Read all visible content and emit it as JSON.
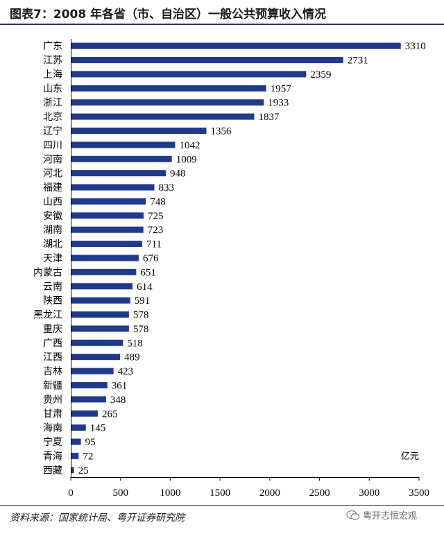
{
  "title": "图表7：2008 年各省（市、自治区）一般公共预算收入情况",
  "source": "资料来源：国家统计局、粤开证券研究院",
  "watermark": "粤开志恒宏观",
  "colors": {
    "bar": "#1f3a8a",
    "rule": "#1f3a70"
  },
  "chart_data": {
    "type": "bar",
    "orientation": "horizontal",
    "unit": "亿元",
    "categories": [
      "广东",
      "江苏",
      "上海",
      "山东",
      "浙江",
      "北京",
      "辽宁",
      "四川",
      "河南",
      "河北",
      "福建",
      "山西",
      "安徽",
      "湖南",
      "湖北",
      "天津",
      "内蒙古",
      "云南",
      "陕西",
      "黑龙江",
      "重庆",
      "广西",
      "江西",
      "吉林",
      "新疆",
      "贵州",
      "甘肃",
      "海南",
      "宁夏",
      "青海",
      "西藏"
    ],
    "values": [
      3310,
      2731,
      2359,
      1957,
      1933,
      1837,
      1356,
      1042,
      1009,
      948,
      833,
      748,
      725,
      723,
      711,
      676,
      651,
      614,
      591,
      578,
      578,
      518,
      489,
      423,
      361,
      348,
      265,
      145,
      95,
      72,
      25
    ],
    "xlim": [
      0,
      3500
    ],
    "xticks": [
      0,
      500,
      1000,
      1500,
      2000,
      2500,
      3000,
      3500
    ],
    "grid": false
  }
}
